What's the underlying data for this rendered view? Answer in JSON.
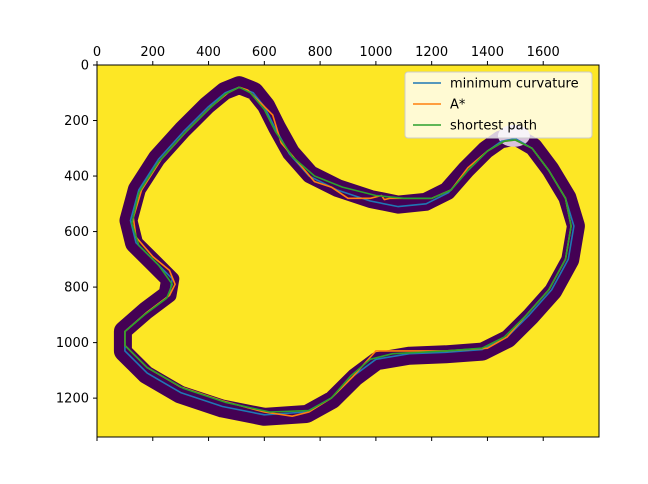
{
  "chart_data": {
    "type": "line",
    "title": "",
    "xlabel": "",
    "ylabel": "",
    "xlim": [
      0,
      1800
    ],
    "ylim": [
      1340,
      0
    ],
    "x_ticks": [
      0,
      200,
      400,
      600,
      800,
      1000,
      1200,
      1400,
      1600
    ],
    "y_ticks": [
      0,
      200,
      400,
      600,
      800,
      1000,
      1200
    ],
    "x_axis_position": "top",
    "y_axis_inverted": true,
    "grid": false,
    "legend_position": "top-right",
    "background": {
      "type": "occupancy-map",
      "free_color": "#fde725",
      "track_color": "#440154",
      "note_color": "#d8c0dc"
    },
    "series": [
      {
        "name": "minimum curvature",
        "color": "#1f77b4",
        "points": [
          [
            510,
            80
          ],
          [
            560,
            100
          ],
          [
            600,
            150
          ],
          [
            640,
            230
          ],
          [
            690,
            320
          ],
          [
            760,
            400
          ],
          [
            860,
            450
          ],
          [
            980,
            490
          ],
          [
            1080,
            510
          ],
          [
            1180,
            500
          ],
          [
            1260,
            460
          ],
          [
            1330,
            380
          ],
          [
            1400,
            310
          ],
          [
            1450,
            275
          ],
          [
            1500,
            265
          ],
          [
            1560,
            300
          ],
          [
            1620,
            380
          ],
          [
            1680,
            480
          ],
          [
            1710,
            580
          ],
          [
            1690,
            700
          ],
          [
            1630,
            810
          ],
          [
            1550,
            900
          ],
          [
            1470,
            980
          ],
          [
            1380,
            1025
          ],
          [
            1250,
            1035
          ],
          [
            1120,
            1040
          ],
          [
            1000,
            1060
          ],
          [
            920,
            1120
          ],
          [
            840,
            1200
          ],
          [
            750,
            1250
          ],
          [
            600,
            1260
          ],
          [
            450,
            1230
          ],
          [
            300,
            1180
          ],
          [
            180,
            1110
          ],
          [
            100,
            1030
          ],
          [
            100,
            960
          ],
          [
            180,
            890
          ],
          [
            260,
            830
          ],
          [
            270,
            770
          ],
          [
            200,
            700
          ],
          [
            140,
            640
          ],
          [
            120,
            560
          ],
          [
            150,
            450
          ],
          [
            220,
            340
          ],
          [
            310,
            240
          ],
          [
            400,
            150
          ],
          [
            460,
            100
          ],
          [
            510,
            80
          ]
        ]
      },
      {
        "name": "A*",
        "color": "#ff7f0e",
        "points": [
          [
            510,
            80
          ],
          [
            540,
            90
          ],
          [
            580,
            130
          ],
          [
            630,
            180
          ],
          [
            660,
            280
          ],
          [
            720,
            350
          ],
          [
            780,
            420
          ],
          [
            840,
            440
          ],
          [
            900,
            480
          ],
          [
            980,
            480
          ],
          [
            1020,
            470
          ],
          [
            1030,
            485
          ],
          [
            1050,
            480
          ],
          [
            1200,
            480
          ],
          [
            1270,
            450
          ],
          [
            1330,
            370
          ],
          [
            1400,
            310
          ],
          [
            1460,
            275
          ],
          [
            1500,
            270
          ],
          [
            1560,
            300
          ],
          [
            1620,
            380
          ],
          [
            1680,
            480
          ],
          [
            1700,
            580
          ],
          [
            1680,
            700
          ],
          [
            1620,
            810
          ],
          [
            1540,
            900
          ],
          [
            1470,
            980
          ],
          [
            1400,
            1020
          ],
          [
            1250,
            1030
          ],
          [
            1000,
            1030
          ],
          [
            920,
            1120
          ],
          [
            840,
            1200
          ],
          [
            760,
            1250
          ],
          [
            700,
            1265
          ],
          [
            600,
            1250
          ],
          [
            450,
            1210
          ],
          [
            300,
            1160
          ],
          [
            180,
            1090
          ],
          [
            100,
            1010
          ],
          [
            100,
            960
          ],
          [
            180,
            890
          ],
          [
            260,
            830
          ],
          [
            280,
            790
          ],
          [
            260,
            740
          ],
          [
            200,
            690
          ],
          [
            140,
            620
          ],
          [
            130,
            550
          ],
          [
            160,
            450
          ],
          [
            230,
            340
          ],
          [
            320,
            240
          ],
          [
            410,
            150
          ],
          [
            470,
            100
          ],
          [
            510,
            80
          ]
        ]
      },
      {
        "name": "shortest path",
        "color": "#2ca02c",
        "points": [
          [
            510,
            80
          ],
          [
            550,
            100
          ],
          [
            600,
            160
          ],
          [
            640,
            240
          ],
          [
            700,
            330
          ],
          [
            780,
            400
          ],
          [
            880,
            440
          ],
          [
            1000,
            470
          ],
          [
            1100,
            480
          ],
          [
            1200,
            480
          ],
          [
            1270,
            450
          ],
          [
            1330,
            380
          ],
          [
            1400,
            310
          ],
          [
            1460,
            275
          ],
          [
            1500,
            270
          ],
          [
            1560,
            300
          ],
          [
            1620,
            380
          ],
          [
            1680,
            480
          ],
          [
            1700,
            580
          ],
          [
            1680,
            700
          ],
          [
            1620,
            810
          ],
          [
            1540,
            900
          ],
          [
            1460,
            980
          ],
          [
            1380,
            1020
          ],
          [
            1250,
            1030
          ],
          [
            1060,
            1040
          ],
          [
            980,
            1060
          ],
          [
            910,
            1120
          ],
          [
            840,
            1200
          ],
          [
            760,
            1245
          ],
          [
            620,
            1250
          ],
          [
            460,
            1215
          ],
          [
            310,
            1165
          ],
          [
            180,
            1090
          ],
          [
            100,
            1010
          ],
          [
            100,
            960
          ],
          [
            170,
            900
          ],
          [
            250,
            840
          ],
          [
            270,
            790
          ],
          [
            220,
            720
          ],
          [
            150,
            650
          ],
          [
            125,
            570
          ],
          [
            150,
            460
          ],
          [
            220,
            350
          ],
          [
            310,
            250
          ],
          [
            400,
            160
          ],
          [
            460,
            105
          ],
          [
            510,
            80
          ]
        ]
      }
    ]
  }
}
